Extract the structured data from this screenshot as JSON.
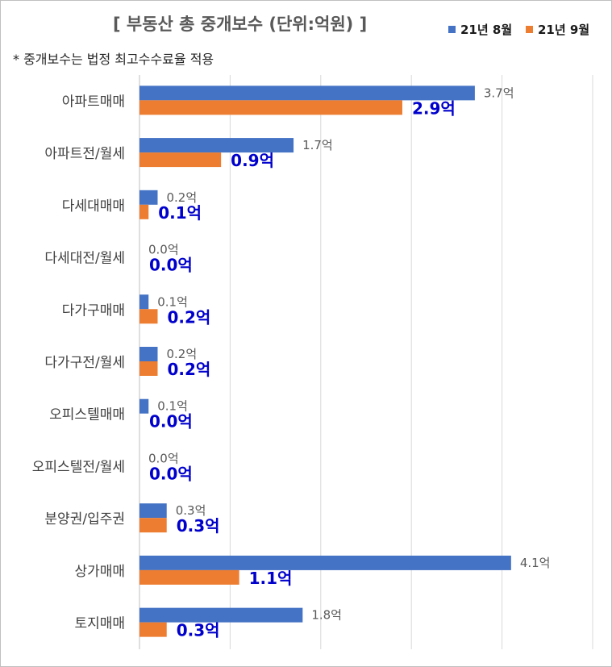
{
  "chart_data": {
    "type": "bar",
    "orientation": "horizontal",
    "title": "[ 부동산 총 중개보수 (단위:억원) ]",
    "note": "* 중개보수는 법정 최고수수료율 적용",
    "categories": [
      "아파트매매",
      "아파트전/월세",
      "다세대매매",
      "다세대전/월세",
      "다가구매매",
      "다가구전/월세",
      "오피스텔매매",
      "오피스텔전/월세",
      "분양권/입주권",
      "상가매매",
      "토지매매"
    ],
    "series": [
      {
        "name": "21년 8월",
        "color": "#4472C4",
        "values": [
          3.7,
          1.7,
          0.2,
          0.0,
          0.1,
          0.2,
          0.1,
          0.0,
          0.3,
          4.1,
          1.8
        ],
        "labels": [
          "3.7억",
          "1.7억",
          "0.2억",
          "0.0억",
          "0.1억",
          "0.2억",
          "0.1억",
          "0.0억",
          "0.3억",
          "4.1억",
          "1.8억"
        ]
      },
      {
        "name": "21년 9월",
        "color": "#ED7D31",
        "values": [
          2.9,
          0.9,
          0.1,
          0.0,
          0.2,
          0.2,
          0.0,
          0.0,
          0.3,
          1.1,
          0.3
        ],
        "labels": [
          "2.9억",
          "0.9억",
          "0.1억",
          "0.0억",
          "0.2억",
          "0.2억",
          "0.0억",
          "0.0억",
          "0.3억",
          "1.1억",
          "0.3억"
        ]
      }
    ],
    "xlim": [
      0,
      5
    ],
    "grid": true,
    "legend_position": "top-right",
    "label_colors": {
      "series1": "#595959",
      "series2": "#0000CC"
    }
  }
}
